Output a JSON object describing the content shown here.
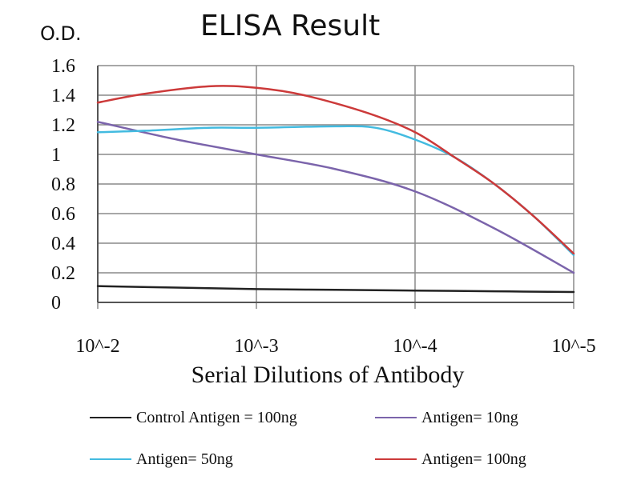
{
  "chart_data": {
    "type": "line",
    "title": "ELISA Result",
    "ylabel": "O.D.",
    "xlabel": "Serial Dilutions of Antibody",
    "x": [
      "10^-2",
      "10^-3",
      "10^-4",
      "10^-5"
    ],
    "ylim": [
      0,
      1.6
    ],
    "yticks": [
      "0",
      "0.2",
      "0.4",
      "0.6",
      "0.8",
      "1",
      "1.2",
      "1.4",
      "1.6"
    ],
    "grid": true,
    "legend_position": "bottom",
    "series": [
      {
        "name": "Control Antigen = 100ng",
        "color": "#222222",
        "points": [
          [
            0,
            0.11
          ],
          [
            0.5,
            0.1
          ],
          [
            1,
            0.09
          ],
          [
            1.5,
            0.085
          ],
          [
            2,
            0.08
          ],
          [
            2.5,
            0.075
          ],
          [
            3,
            0.07
          ]
        ]
      },
      {
        "name": "Antigen= 10ng",
        "color": "#7b64ab",
        "points": [
          [
            0,
            1.22
          ],
          [
            0.5,
            1.1
          ],
          [
            1,
            1.0
          ],
          [
            1.5,
            0.9
          ],
          [
            2,
            0.75
          ],
          [
            2.5,
            0.5
          ],
          [
            3,
            0.2
          ]
        ]
      },
      {
        "name": "Antigen= 50ng",
        "color": "#43bbe0",
        "points": [
          [
            0,
            1.15
          ],
          [
            0.3,
            1.16
          ],
          [
            0.7,
            1.18
          ],
          [
            1,
            1.18
          ],
          [
            1.5,
            1.19
          ],
          [
            1.75,
            1.18
          ],
          [
            2,
            1.1
          ],
          [
            2.25,
            0.98
          ],
          [
            2.5,
            0.8
          ],
          [
            2.75,
            0.58
          ],
          [
            3,
            0.32
          ]
        ]
      },
      {
        "name": "Antigen= 100ng",
        "color": "#cc3a3a",
        "points": [
          [
            0,
            1.35
          ],
          [
            0.3,
            1.41
          ],
          [
            0.7,
            1.46
          ],
          [
            1,
            1.45
          ],
          [
            1.3,
            1.4
          ],
          [
            1.7,
            1.28
          ],
          [
            2,
            1.15
          ],
          [
            2.25,
            0.98
          ],
          [
            2.5,
            0.8
          ],
          [
            2.75,
            0.58
          ],
          [
            3,
            0.33
          ]
        ]
      }
    ]
  }
}
